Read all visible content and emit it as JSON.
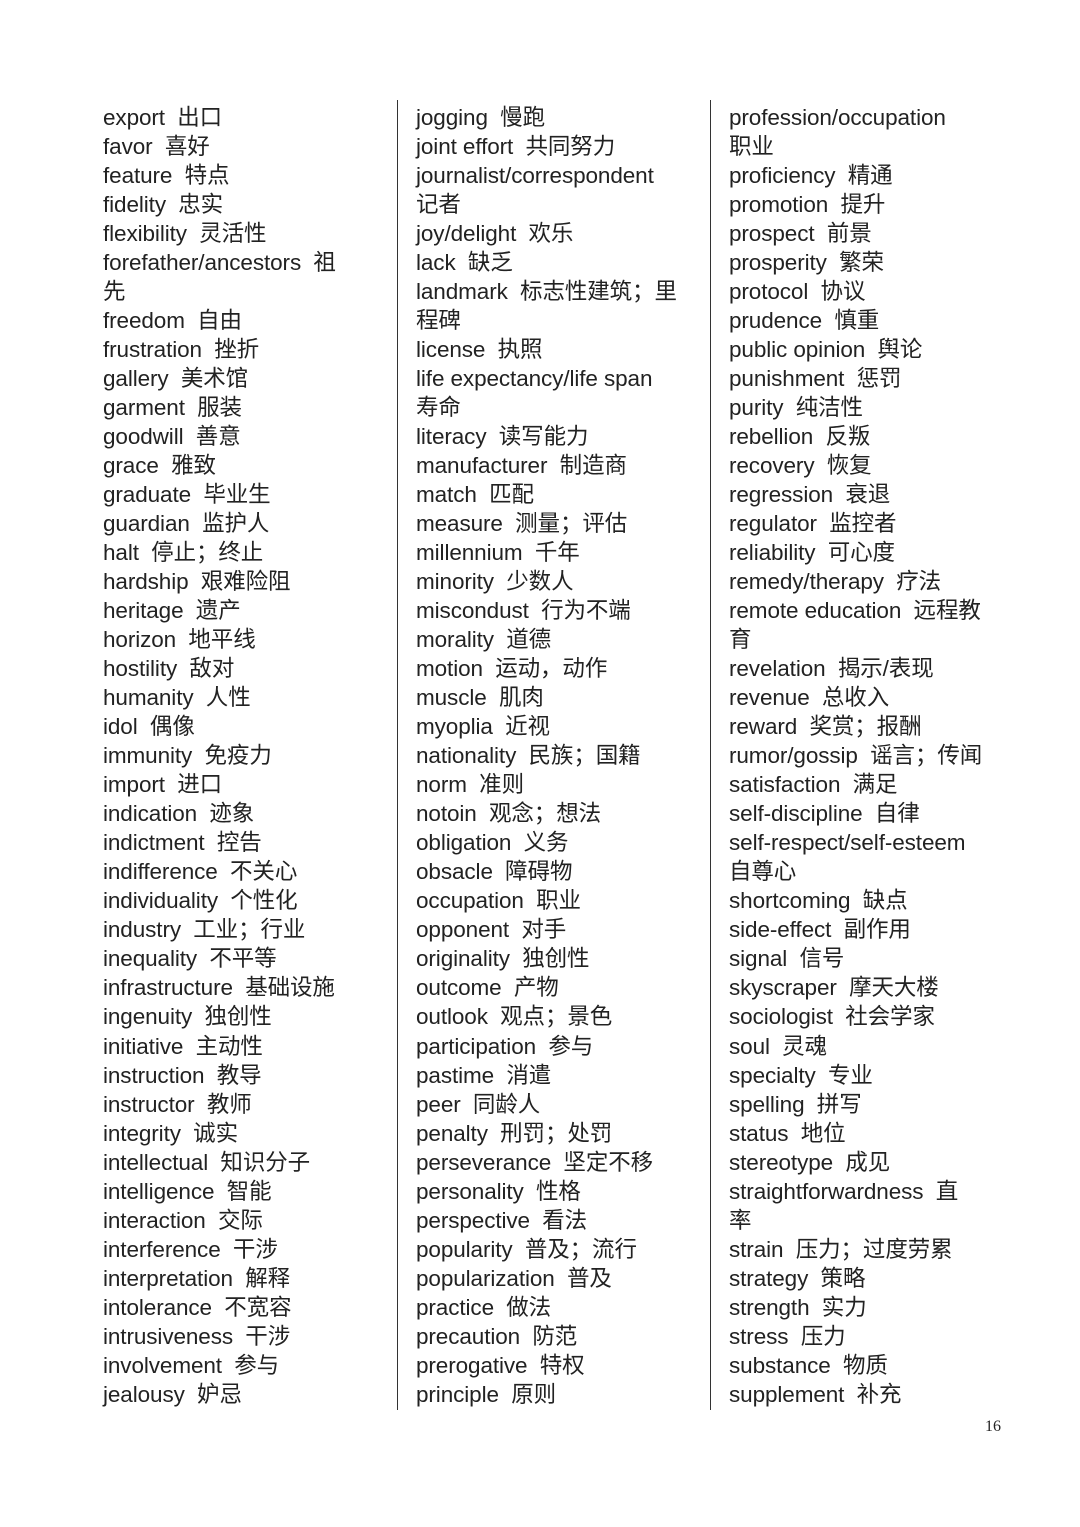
{
  "page_number": "16",
  "columns": [
    [
      "export  出口",
      "favor  喜好",
      "feature  特点",
      "fidelity  忠实",
      "flexibility  灵活性",
      "forefather/ancestors  祖",
      "先",
      "freedom  自由",
      "frustration  挫折",
      "gallery  美术馆",
      "garment  服装",
      "goodwill  善意",
      "grace  雅致",
      "graduate  毕业生",
      "guardian  监护人",
      "halt  停止；终止",
      "hardship  艰难险阻",
      "heritage  遗产",
      "horizon  地平线",
      "hostility  敌对",
      "humanity  人性",
      "idol  偶像",
      "immunity  免疫力",
      "import  进口",
      "indication  迹象",
      "indictment  控告",
      "indifference  不关心",
      "individuality  个性化",
      "industry  工业；行业",
      "inequality  不平等",
      "infrastructure  基础设施",
      "ingenuity  独创性",
      "initiative  主动性",
      "instruction  教导",
      "instructor  教师",
      "integrity  诚实",
      "intellectual  知识分子",
      "intelligence  智能",
      "interaction  交际",
      "interference  干涉",
      "interpretation  解释",
      "intolerance  不宽容",
      "intrusiveness  干涉",
      "involvement  参与",
      "jealousy  妒忌"
    ],
    [
      "jogging  慢跑",
      "joint effort  共同努力",
      "journalist/correspondent",
      "记者",
      "joy/delight  欢乐",
      "lack  缺乏",
      "landmark  标志性建筑；里",
      "程碑",
      "license  执照",
      "life expectancy/life span",
      "寿命",
      "literacy  读写能力",
      "manufacturer  制造商",
      "match  匹配",
      "measure  测量；评估",
      "millennium  千年",
      "minority  少数人",
      "miscondust  行为不端",
      "morality  道德",
      "motion  运动，动作",
      "muscle  肌肉",
      "myoplia  近视",
      "nationality  民族；国籍",
      "norm  准则",
      "notoin  观念；想法",
      "obligation  义务",
      "obsacle  障碍物",
      "occupation  职业",
      "opponent  对手",
      "originality  独创性",
      "outcome  产物",
      "outlook  观点；景色",
      "participation  参与",
      "pastime  消遣",
      "peer  同龄人",
      "penalty  刑罚；处罚",
      "perseverance  坚定不移",
      "personality  性格",
      "perspective  看法",
      "popularity  普及；流行",
      "popularization  普及",
      "practice  做法",
      "precaution  防范",
      "prerogative  特权",
      "principle  原则"
    ],
    [
      "profession/occupation",
      "职业",
      "proficiency  精通",
      "promotion  提升",
      "prospect  前景",
      "prosperity  繁荣",
      "protocol  协议",
      "prudence  慎重",
      "public opinion  舆论",
      "punishment  惩罚",
      "purity  纯洁性",
      "rebellion  反叛",
      "recovery  恢复",
      "regression  衰退",
      "regulator  监控者",
      "reliability  可心度",
      "remedy/therapy  疗法",
      "remote education  远程教",
      "育",
      "revelation  揭示/表现",
      "revenue  总收入",
      "reward  奖赏；报酬",
      "rumor/gossip  谣言；传闻",
      "satisfaction  满足",
      "self-discipline  自律",
      "self-respect/self-esteem",
      "自尊心",
      "shortcoming  缺点",
      "side-effect  副作用",
      "signal  信号",
      "skyscraper  摩天大楼",
      "sociologist  社会学家",
      "soul  灵魂",
      "specialty  专业",
      "spelling  拼写",
      "status  地位",
      "stereotype  成见",
      "straightforwardness  直",
      "率",
      "strain  压力；过度劳累",
      "strategy  策略",
      "strength  实力",
      "stress  压力",
      "substance  物质",
      "supplement  补充"
    ]
  ]
}
